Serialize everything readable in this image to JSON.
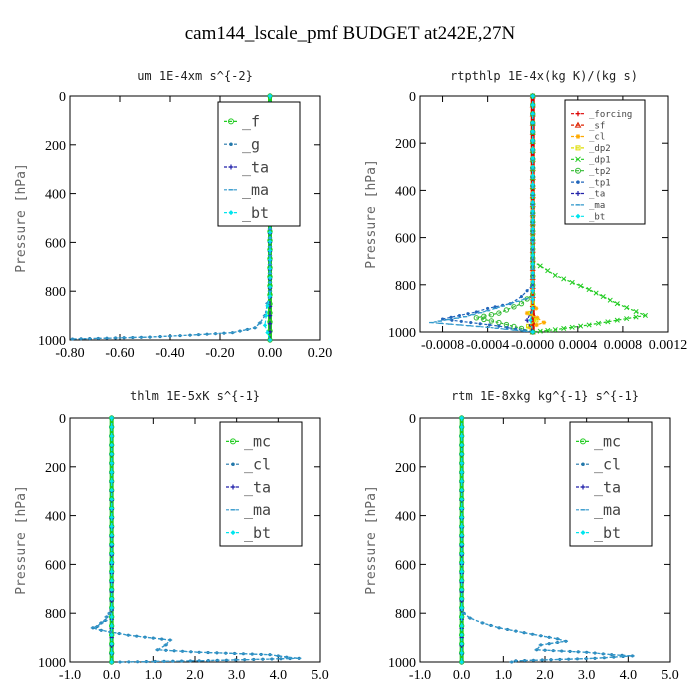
{
  "figure_title": "cam144_lscale_pmf  BUDGET at242E,27N",
  "colors": {
    "f": "#22cc22",
    "g": "#2277aa",
    "ta": "#2222aa",
    "ma": "#3399cc",
    "bt": "#00e5ee",
    "mc": "#22cc22",
    "cl": "#2277aa",
    "forcing": "#dd0000",
    "sf": "#dd2200",
    "cl_small": "#ffaa00",
    "dp2": "#dddd00",
    "dp1": "#22cc22",
    "tp2": "#33bb33",
    "tp1": "#2266bb",
    "ta_small": "#2222aa",
    "ma_small": "#3399cc",
    "bt_small": "#00e5ee"
  },
  "chart_data": [
    {
      "type": "line",
      "title": "um   1E-4xm s^{-2}",
      "ylabel": "Pressure [hPa]",
      "xlim": [
        -0.8,
        0.2
      ],
      "ylim": [
        1000,
        0
      ],
      "xticks": [
        "-0.80",
        "-0.60",
        "-0.40",
        "-0.20",
        "0.00",
        "0.20"
      ],
      "xtick_values": [
        -0.8,
        -0.6,
        -0.4,
        -0.2,
        0.0,
        0.2
      ],
      "yticks": [
        "0",
        "200",
        "400",
        "600",
        "800",
        "1000"
      ],
      "ytick_values": [
        0,
        200,
        400,
        600,
        800,
        1000
      ],
      "legend": [
        "_f",
        "_g",
        "_ta",
        "_ma",
        "_bt"
      ],
      "legend_font": 15,
      "legend_placement": "top-right",
      "series": [
        {
          "name": "_f",
          "color_key": "f",
          "x": [
            0,
            0
          ],
          "y": [
            0,
            1000
          ],
          "marker": "circle",
          "wide": true
        },
        {
          "name": "_g",
          "color_key": "g",
          "x": [
            0,
            0,
            -0.01,
            -0.02,
            -0.04,
            -0.06,
            -0.15,
            -0.32,
            -0.48,
            -0.79
          ],
          "y": [
            0,
            800,
            850,
            900,
            930,
            950,
            970,
            980,
            988,
            996
          ],
          "marker": "dot"
        },
        {
          "name": "_ta",
          "color_key": "ta",
          "x": [
            0,
            0,
            0.0
          ],
          "y": [
            0,
            900,
            1000
          ],
          "marker": "plus"
        },
        {
          "name": "_ma",
          "color_key": "ma",
          "x": [
            0,
            0,
            -0.01,
            -0.02,
            -0.04,
            -0.06,
            -0.15,
            -0.32,
            -0.48,
            -0.79
          ],
          "y": [
            0,
            800,
            850,
            900,
            930,
            950,
            970,
            980,
            988,
            996
          ],
          "marker": "dash"
        },
        {
          "name": "_bt",
          "color_key": "bt",
          "x": [
            0,
            0,
            -0.01,
            -0.015,
            -0.02,
            -0.01,
            0.0
          ],
          "y": [
            0,
            820,
            860,
            900,
            940,
            970,
            1000
          ],
          "marker": "diamond"
        }
      ]
    },
    {
      "type": "line",
      "title": "rtpthlp   1E-4x(kg K)/(kg s)",
      "ylabel": "Pressure [hPa]",
      "xlim": [
        -0.001,
        0.0012
      ],
      "ylim": [
        1000,
        0
      ],
      "xticks": [
        "-0.0008",
        "-0.0004",
        "-0.0000",
        "0.0004",
        "0.0008",
        "0.0012"
      ],
      "xtick_values": [
        -0.0008,
        -0.0004,
        0.0,
        0.0004,
        0.0008,
        0.0012
      ],
      "yticks": [
        "0",
        "200",
        "400",
        "600",
        "800",
        "1000"
      ],
      "ytick_values": [
        0,
        200,
        400,
        600,
        800,
        1000
      ],
      "legend": [
        "_forcing",
        "_sf",
        "_cl",
        "_dp2",
        "_dp1",
        "_tp2",
        "_tp1",
        "_ta",
        "_ma",
        "_bt"
      ],
      "legend_font": 9,
      "legend_placement": "top-right",
      "series": [
        {
          "name": "_forcing",
          "color_key": "forcing",
          "x": [
            0,
            0
          ],
          "y": [
            0,
            1000
          ],
          "marker": "plus",
          "wide": true
        },
        {
          "name": "_sf",
          "color_key": "sf",
          "x": [
            0,
            0
          ],
          "y": [
            0,
            1000
          ],
          "marker": "triangle"
        },
        {
          "name": "_cl",
          "color_key": "cl_small",
          "x": [
            0,
            0,
            3e-05,
            -5e-05,
            4e-05,
            0.0001,
            -3e-05,
            0.0
          ],
          "y": [
            0,
            860,
            900,
            920,
            940,
            960,
            980,
            1000
          ],
          "marker": "star"
        },
        {
          "name": "_dp2",
          "color_key": "dp2",
          "x": [
            0,
            0,
            -2e-05,
            3e-05,
            -4e-05,
            0.0
          ],
          "y": [
            0,
            880,
            920,
            950,
            975,
            1000
          ],
          "marker": "square"
        },
        {
          "name": "_dp1",
          "color_key": "dp1",
          "x": [
            0,
            0,
            0.0002,
            0.0005,
            0.00075,
            0.001,
            0.0005,
            0.0002,
            0.0
          ],
          "y": [
            0,
            700,
            760,
            820,
            880,
            930,
            970,
            990,
            1000
          ],
          "marker": "cross"
        },
        {
          "name": "_tp2",
          "color_key": "tp2",
          "x": [
            0,
            0,
            -0.0001,
            -0.0003,
            -0.0005,
            -0.0003,
            -0.0001,
            0.0
          ],
          "y": [
            0,
            840,
            880,
            920,
            940,
            960,
            985,
            1000
          ],
          "marker": "circle"
        },
        {
          "name": "_tp1",
          "color_key": "tp1",
          "x": [
            0,
            0,
            -0.0001,
            -0.0002,
            -0.0004,
            -0.0005,
            -0.0008,
            -0.0003,
            0.0
          ],
          "y": [
            0,
            800,
            850,
            880,
            900,
            915,
            945,
            975,
            1000
          ],
          "marker": "dot"
        },
        {
          "name": "_ta",
          "color_key": "ta_small",
          "x": [
            0,
            0,
            -5e-05,
            0.0
          ],
          "y": [
            0,
            900,
            950,
            1000
          ],
          "marker": "plus"
        },
        {
          "name": "_ma",
          "color_key": "ma_small",
          "x": [
            0,
            0,
            -0.0002,
            -0.0004,
            -0.0006,
            -0.0009,
            -0.0004,
            0.0
          ],
          "y": [
            0,
            850,
            880,
            910,
            935,
            960,
            980,
            1000
          ],
          "marker": "dash"
        },
        {
          "name": "_bt",
          "color_key": "bt_small",
          "x": [
            0,
            0,
            -2e-05,
            0.0
          ],
          "y": [
            0,
            900,
            950,
            1000
          ],
          "marker": "diamond"
        }
      ]
    },
    {
      "type": "line",
      "title": "thlm   1E-5xK s^{-1}",
      "ylabel": "Pressure [hPa]",
      "xlim": [
        -1.0,
        5.0
      ],
      "ylim": [
        1000,
        0
      ],
      "xticks": [
        "-1.0",
        "0.0",
        "1.0",
        "2.0",
        "3.0",
        "4.0",
        "5.0"
      ],
      "xtick_values": [
        -1,
        0,
        1,
        2,
        3,
        4,
        5
      ],
      "yticks": [
        "0",
        "200",
        "400",
        "600",
        "800",
        "1000"
      ],
      "ytick_values": [
        0,
        200,
        400,
        600,
        800,
        1000
      ],
      "legend": [
        "_mc",
        "_cl",
        "_ta",
        "_ma",
        "_bt"
      ],
      "legend_font": 15,
      "legend_placement": "top-right",
      "series": [
        {
          "name": "_mc",
          "color_key": "mc",
          "x": [
            0,
            0
          ],
          "y": [
            0,
            1000
          ],
          "marker": "circle",
          "wide": true
        },
        {
          "name": "_cl",
          "color_key": "cl",
          "x": [
            0,
            0,
            -0.05,
            -0.12,
            -0.15,
            -0.25,
            -0.35,
            -0.45,
            -0.25,
            0.4,
            1.4,
            1.3,
            1.1,
            2.1,
            3.8,
            4.2,
            4.5,
            2.1,
            0.2
          ],
          "y": [
            0,
            780,
            800,
            815,
            830,
            840,
            855,
            860,
            870,
            890,
            910,
            930,
            950,
            960,
            970,
            980,
            985,
            995,
            1000
          ],
          "marker": "dot"
        },
        {
          "name": "_ta",
          "color_key": "ta",
          "x": [
            0,
            0,
            0.0
          ],
          "y": [
            0,
            900,
            1000
          ],
          "marker": "plus"
        },
        {
          "name": "_ma",
          "color_key": "ma",
          "x": [
            0,
            0,
            -0.05,
            -0.12,
            -0.15,
            -0.25,
            -0.35,
            -0.45,
            -0.25,
            0.4,
            1.4,
            1.3,
            1.1,
            2.1,
            3.8,
            4.2,
            4.5,
            2.1,
            0.2
          ],
          "y": [
            0,
            780,
            800,
            815,
            830,
            840,
            855,
            860,
            870,
            890,
            910,
            930,
            950,
            960,
            970,
            980,
            985,
            995,
            1000
          ],
          "marker": "dash"
        },
        {
          "name": "_bt",
          "color_key": "bt",
          "x": [
            0,
            0
          ],
          "y": [
            0,
            1000
          ],
          "marker": "diamond"
        }
      ]
    },
    {
      "type": "line",
      "title": "rtm   1E-8xkg kg^{-1} s^{-1}",
      "ylabel": "Pressure [hPa]",
      "xlim": [
        -1.0,
        5.0
      ],
      "ylim": [
        1000,
        0
      ],
      "xticks": [
        "-1.0",
        "0.0",
        "1.0",
        "2.0",
        "3.0",
        "4.0",
        "5.0"
      ],
      "xtick_values": [
        -1,
        0,
        1,
        2,
        3,
        4,
        5
      ],
      "yticks": [
        "0",
        "200",
        "400",
        "600",
        "800",
        "1000"
      ],
      "ytick_values": [
        0,
        200,
        400,
        600,
        800,
        1000
      ],
      "legend": [
        "_mc",
        "_cl",
        "_ta",
        "_ma",
        "_bt"
      ],
      "legend_font": 15,
      "legend_placement": "top-right",
      "series": [
        {
          "name": "_mc",
          "color_key": "mc",
          "x": [
            0,
            0
          ],
          "y": [
            0,
            1000
          ],
          "marker": "circle",
          "wide": true
        },
        {
          "name": "_cl",
          "color_key": "cl",
          "x": [
            0,
            0,
            0.05,
            0.2,
            0.5,
            0.9,
            1.5,
            2.3,
            2.5,
            1.9,
            1.8,
            3.0,
            3.6,
            4.1,
            3.2,
            1.3,
            1.2
          ],
          "y": [
            0,
            780,
            800,
            820,
            840,
            860,
            880,
            905,
            915,
            930,
            950,
            960,
            970,
            975,
            985,
            995,
            1000
          ],
          "marker": "dot"
        },
        {
          "name": "_ta",
          "color_key": "ta",
          "x": [
            0,
            0,
            0.0
          ],
          "y": [
            0,
            900,
            1000
          ],
          "marker": "plus"
        },
        {
          "name": "_ma",
          "color_key": "ma",
          "x": [
            0,
            0,
            0.05,
            0.2,
            0.5,
            0.9,
            1.5,
            2.3,
            2.5,
            1.9,
            1.8,
            3.0,
            3.6,
            4.1,
            3.2,
            1.3,
            1.2
          ],
          "y": [
            0,
            780,
            800,
            820,
            840,
            860,
            880,
            905,
            915,
            930,
            950,
            960,
            970,
            975,
            985,
            995,
            1000
          ],
          "marker": "dash"
        },
        {
          "name": "_bt",
          "color_key": "bt",
          "x": [
            0,
            0
          ],
          "y": [
            0,
            1000
          ],
          "marker": "diamond"
        }
      ]
    }
  ]
}
